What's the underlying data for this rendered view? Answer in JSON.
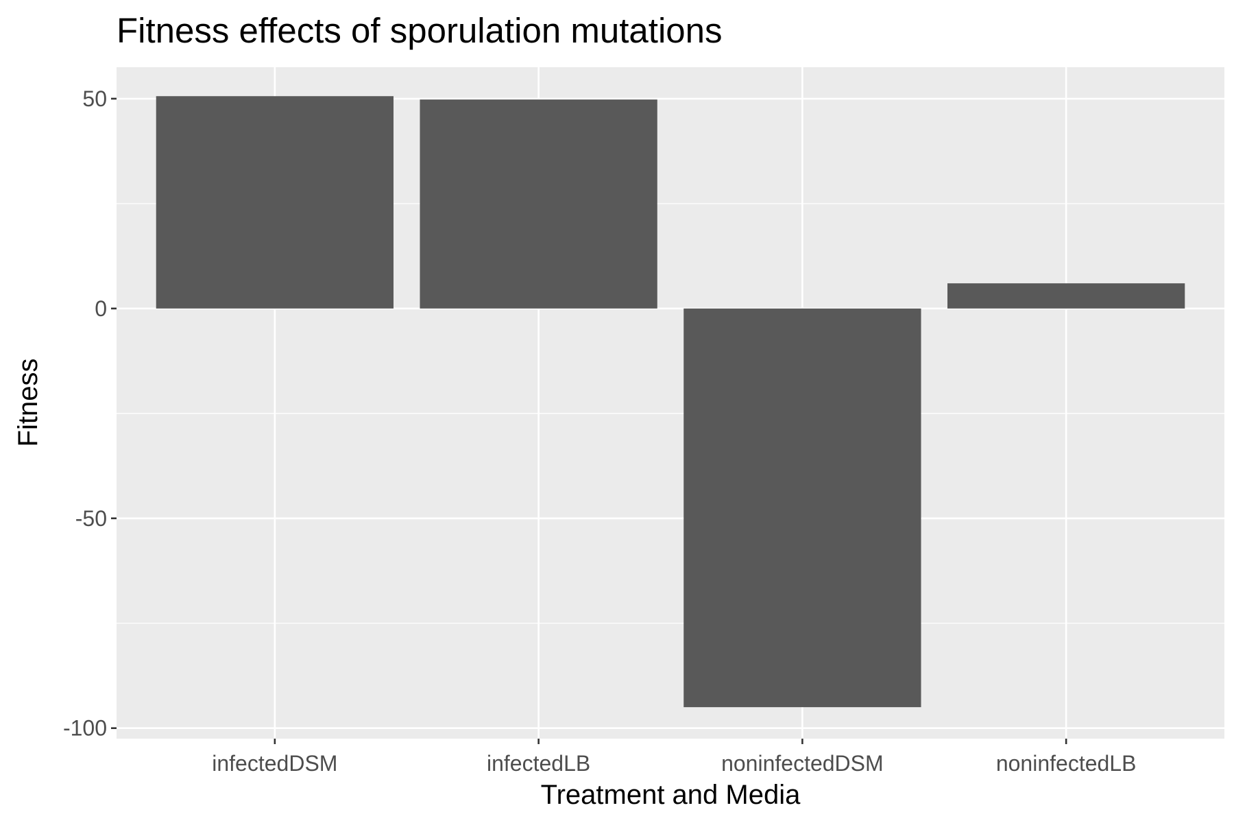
{
  "chart_data": {
    "type": "bar",
    "title": "Fitness effects of sporulation mutations",
    "xlabel": "Treatment and Media",
    "ylabel": "Fitness",
    "categories": [
      "infectedDSM",
      "infectedLB",
      "noninfectedDSM",
      "noninfectedLB"
    ],
    "values": [
      50.6,
      49.8,
      -95.0,
      6.0
    ],
    "ylim": [
      -102.5,
      57.5
    ],
    "yticks": [
      -100,
      -50,
      0,
      50
    ],
    "ytick_labels": [
      "-100",
      "-50",
      "0",
      "50"
    ],
    "grid": true,
    "legend": "none",
    "colors": {
      "panel_background": "#ebebeb",
      "grid": "#ffffff",
      "bar_fill": "#595959",
      "tick_mark": "#333333",
      "tick_text": "#4d4d4d",
      "text": "#000000"
    }
  }
}
